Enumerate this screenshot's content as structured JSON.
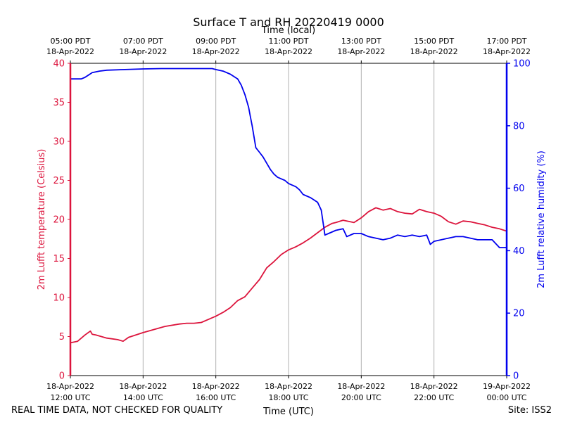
{
  "chart_data": {
    "type": "line",
    "title": "Surface T and RH 20220419 0000",
    "xlabel_top": "Time (local)",
    "xlabel_bottom": "Time (UTC)",
    "ylabel_left": "2m Lufft temperature (Celsius)",
    "ylabel_right": "2m Lufft relative humidity (%)",
    "x_unit": "hours UTC on 18-Apr-2022",
    "xlim": [
      12,
      24
    ],
    "ylim_left": [
      0,
      40
    ],
    "ylim_right": [
      0,
      100
    ],
    "left_ticks": [
      "0",
      "5",
      "10",
      "15",
      "20",
      "25",
      "30",
      "35",
      "40"
    ],
    "right_ticks": [
      "0",
      "20",
      "40",
      "60",
      "80",
      "100"
    ],
    "x_ticks_bottom": [
      {
        "l1": "18-Apr-2022",
        "l2": "12:00 UTC"
      },
      {
        "l1": "18-Apr-2022",
        "l2": "14:00 UTC"
      },
      {
        "l1": "18-Apr-2022",
        "l2": "16:00 UTC"
      },
      {
        "l1": "18-Apr-2022",
        "l2": "18:00 UTC"
      },
      {
        "l1": "18-Apr-2022",
        "l2": "20:00 UTC"
      },
      {
        "l1": "18-Apr-2022",
        "l2": "22:00 UTC"
      },
      {
        "l1": "19-Apr-2022",
        "l2": "00:00 UTC"
      }
    ],
    "x_ticks_top": [
      {
        "l1": "05:00 PDT",
        "l2": "18-Apr-2022"
      },
      {
        "l1": "07:00 PDT",
        "l2": "18-Apr-2022"
      },
      {
        "l1": "09:00 PDT",
        "l2": "18-Apr-2022"
      },
      {
        "l1": "11:00 PDT",
        "l2": "18-Apr-2022"
      },
      {
        "l1": "13:00 PDT",
        "l2": "18-Apr-2022"
      },
      {
        "l1": "15:00 PDT",
        "l2": "18-Apr-2022"
      },
      {
        "l1": "17:00 PDT",
        "l2": "18-Apr-2022"
      }
    ],
    "grid": "vertical",
    "colors": {
      "temperature": "#dc143c",
      "humidity": "#0000ee",
      "grid": "#b0b0b0"
    },
    "series": [
      {
        "name": "2m Lufft temperature",
        "axis": "left",
        "x": [
          12.0,
          12.2,
          12.4,
          12.55,
          12.6,
          12.7,
          13.0,
          13.3,
          13.45,
          13.6,
          14.0,
          14.3,
          14.6,
          15.0,
          15.2,
          15.4,
          15.6,
          15.8,
          16.0,
          16.2,
          16.4,
          16.6,
          16.8,
          17.0,
          17.2,
          17.4,
          17.6,
          17.8,
          18.0,
          18.2,
          18.4,
          18.6,
          18.8,
          19.0,
          19.2,
          19.3,
          19.5,
          19.8,
          20.0,
          20.2,
          20.4,
          20.6,
          20.8,
          21.0,
          21.2,
          21.4,
          21.6,
          21.8,
          22.0,
          22.2,
          22.4,
          22.6,
          22.8,
          23.0,
          23.2,
          23.4,
          23.6,
          23.8,
          24.0
        ],
        "y": [
          4.2,
          4.4,
          5.2,
          5.7,
          5.3,
          5.2,
          4.8,
          4.6,
          4.4,
          4.9,
          5.5,
          5.9,
          6.3,
          6.6,
          6.7,
          6.7,
          6.8,
          7.2,
          7.6,
          8.1,
          8.7,
          9.6,
          10.1,
          11.2,
          12.3,
          13.8,
          14.6,
          15.5,
          16.1,
          16.5,
          17.0,
          17.6,
          18.3,
          19.0,
          19.5,
          19.6,
          19.9,
          19.6,
          20.2,
          21.0,
          21.5,
          21.2,
          21.4,
          21.0,
          20.8,
          20.7,
          21.3,
          21.0,
          20.8,
          20.4,
          19.7,
          19.4,
          19.8,
          19.7,
          19.5,
          19.3,
          19.0,
          18.8,
          18.5
        ]
      },
      {
        "name": "2m Lufft relative humidity",
        "axis": "right",
        "x": [
          12.0,
          12.3,
          12.4,
          12.6,
          12.8,
          13.0,
          13.5,
          14.0,
          14.5,
          15.0,
          15.5,
          15.9,
          16.0,
          16.2,
          16.4,
          16.6,
          16.7,
          16.8,
          16.9,
          16.95,
          17.0,
          17.1,
          17.2,
          17.3,
          17.4,
          17.5,
          17.6,
          17.7,
          17.8,
          17.9,
          18.0,
          18.2,
          18.3,
          18.4,
          18.6,
          18.8,
          18.9,
          19.0,
          19.1,
          19.3,
          19.5,
          19.6,
          19.8,
          20.0,
          20.2,
          20.4,
          20.6,
          20.8,
          21.0,
          21.2,
          21.4,
          21.6,
          21.8,
          21.9,
          22.0,
          22.2,
          22.4,
          22.6,
          22.8,
          23.0,
          23.2,
          23.4,
          23.6,
          23.8,
          24.0
        ],
        "y": [
          95.0,
          95.0,
          95.5,
          97.0,
          97.5,
          97.8,
          98.0,
          98.2,
          98.3,
          98.3,
          98.3,
          98.3,
          98.0,
          97.5,
          96.5,
          95.0,
          93.0,
          90.0,
          86.0,
          83.0,
          80.0,
          73.0,
          71.5,
          70.0,
          68.0,
          66.0,
          64.5,
          63.5,
          63.0,
          62.5,
          61.5,
          60.5,
          59.5,
          58.0,
          57.0,
          55.5,
          53.0,
          45.0,
          45.5,
          46.5,
          47.0,
          44.5,
          45.5,
          45.5,
          44.5,
          44.0,
          43.5,
          44.0,
          45.0,
          44.5,
          45.0,
          44.5,
          45.0,
          42.0,
          43.0,
          43.5,
          44.0,
          44.5,
          44.5,
          44.0,
          43.5,
          43.5,
          43.5,
          41.0,
          41.0
        ]
      }
    ]
  },
  "footer": {
    "disclaimer": "REAL TIME DATA, NOT CHECKED FOR QUALITY",
    "site": "Site: ISS2"
  }
}
